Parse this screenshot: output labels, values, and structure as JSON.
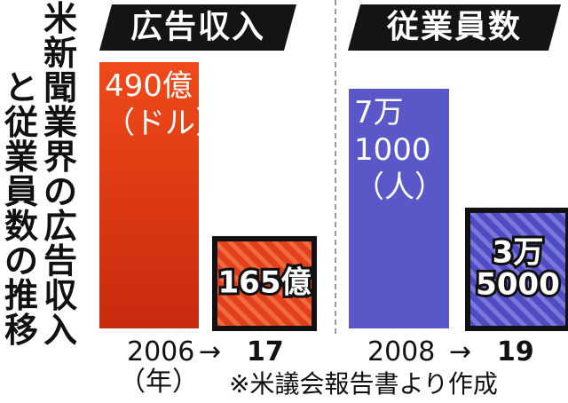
{
  "title": {
    "col1": [
      "米",
      "新",
      "聞",
      "業",
      "界",
      "の",
      "広",
      "告",
      "収",
      "入"
    ],
    "col2": [
      "と",
      "従",
      "業",
      "員",
      "数",
      "の",
      "推",
      "移"
    ]
  },
  "colors": {
    "ad_bar_top": "#f04a1a",
    "ad_bar_bottom": "#c82a0e",
    "emp_bar": "#5a58c8",
    "header_bg": "#141414",
    "frame": "#111111"
  },
  "chart_data": [
    {
      "type": "bar",
      "title": "広告収入",
      "categories": [
        "2006",
        "17"
      ],
      "values": [
        490,
        165
      ],
      "data_labels": [
        "490億\n（ドル）",
        "165億"
      ],
      "unit": "億（ドル）",
      "x_unit": "（年）",
      "arrow": "→"
    },
    {
      "type": "bar",
      "title": "従業員数",
      "categories": [
        "2008",
        "19"
      ],
      "values": [
        71000,
        35000
      ],
      "data_labels": [
        "7万\n1000\n（人）",
        "3万\n5000"
      ],
      "unit": "人",
      "arrow": "→"
    }
  ],
  "footnote": "※米議会報告書より作成"
}
